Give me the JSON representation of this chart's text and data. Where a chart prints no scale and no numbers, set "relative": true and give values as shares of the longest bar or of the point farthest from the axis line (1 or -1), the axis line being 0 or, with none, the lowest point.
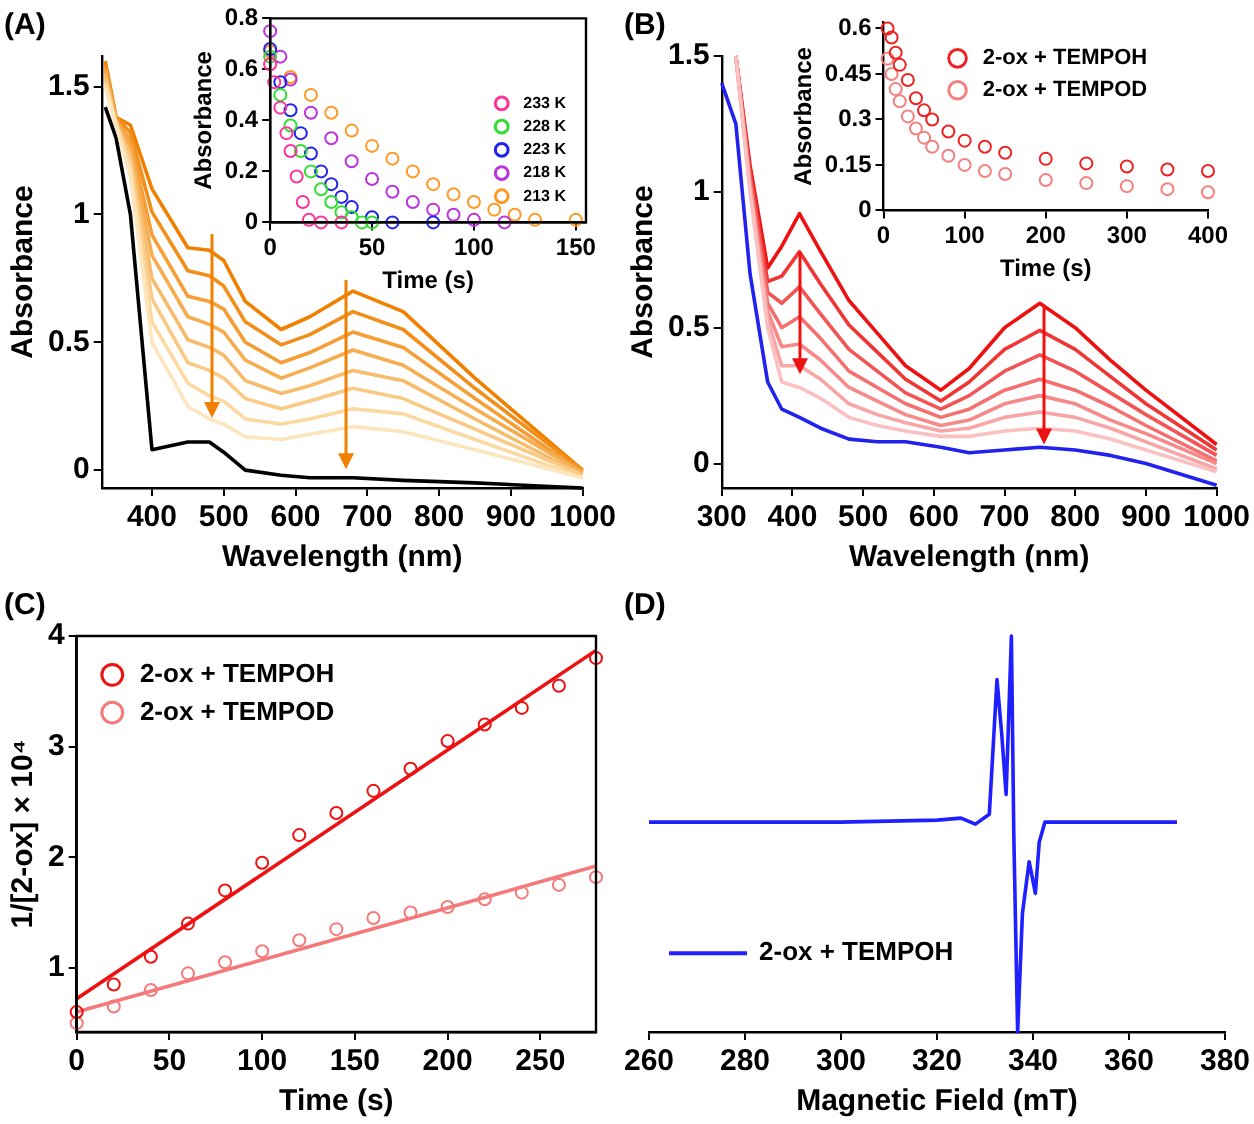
{
  "chart_data": [
    {
      "type": "line",
      "title": "(A)",
      "xlabel": "Wavelength (nm)",
      "ylabel": "Absorbance",
      "xlim": [
        330,
        1000
      ],
      "ylim": [
        -0.07,
        1.62
      ],
      "xticks": [
        400,
        500,
        600,
        700,
        800,
        900,
        1000
      ],
      "yticks": [
        0,
        0.5,
        1,
        1.5
      ],
      "x": [
        335,
        350,
        370,
        400,
        450,
        480,
        500,
        530,
        580,
        620,
        680,
        750,
        850,
        1000
      ],
      "series": [
        {
          "color": "#fde6bd",
          "values": [
            1.5,
            1.35,
            1.15,
            0.5,
            0.25,
            0.2,
            0.18,
            0.13,
            0.12,
            0.14,
            0.17,
            0.15,
            0.08,
            -0.03
          ]
        },
        {
          "color": "#fbd9a1",
          "values": [
            1.51,
            1.35,
            1.18,
            0.58,
            0.34,
            0.29,
            0.27,
            0.2,
            0.18,
            0.2,
            0.24,
            0.22,
            0.12,
            -0.03
          ]
        },
        {
          "color": "#f9ca86",
          "values": [
            1.53,
            1.36,
            1.21,
            0.67,
            0.42,
            0.39,
            0.36,
            0.28,
            0.24,
            0.27,
            0.32,
            0.28,
            0.16,
            -0.02
          ]
        },
        {
          "color": "#f7bc6b",
          "values": [
            1.54,
            1.36,
            1.23,
            0.75,
            0.51,
            0.48,
            0.45,
            0.35,
            0.3,
            0.33,
            0.39,
            0.35,
            0.2,
            -0.02
          ]
        },
        {
          "color": "#f6ad50",
          "values": [
            1.56,
            1.37,
            1.26,
            0.84,
            0.6,
            0.57,
            0.54,
            0.43,
            0.36,
            0.4,
            0.47,
            0.41,
            0.24,
            -0.01
          ]
        },
        {
          "color": "#f49e35",
          "values": [
            1.57,
            1.37,
            1.29,
            0.92,
            0.68,
            0.66,
            0.63,
            0.5,
            0.42,
            0.46,
            0.54,
            0.48,
            0.28,
            -0.01
          ]
        },
        {
          "color": "#f28f1a",
          "values": [
            1.59,
            1.38,
            1.32,
            1.01,
            0.78,
            0.76,
            0.72,
            0.58,
            0.49,
            0.53,
            0.62,
            0.55,
            0.32,
            0
          ]
        },
        {
          "color": "#f08000",
          "values": [
            1.6,
            1.38,
            1.35,
            1.1,
            0.87,
            0.86,
            0.82,
            0.66,
            0.55,
            0.6,
            0.7,
            0.62,
            0.36,
            0
          ]
        },
        {
          "color": "#000000",
          "values": [
            1.42,
            1.3,
            1.0,
            0.08,
            0.11,
            0.11,
            0.07,
            0.0,
            -0.02,
            -0.03,
            -0.03,
            -0.04,
            -0.05,
            -0.07
          ]
        }
      ]
    },
    {
      "type": "scatter",
      "xlabel": "Time (s)",
      "ylabel": "Absorbance",
      "xlim": [
        0,
        155
      ],
      "ylim": [
        0,
        0.8
      ],
      "xticks": [
        0,
        50,
        100,
        150
      ],
      "yticks": [
        0,
        0.2,
        0.4,
        0.6,
        0.8
      ],
      "marker": "circle",
      "legend": "right",
      "series": [
        {
          "name": "233 K",
          "color": "#ff3399",
          "x": [
            0,
            2,
            5,
            8,
            10,
            13,
            16,
            19,
            25,
            35
          ],
          "values": [
            0.62,
            0.55,
            0.45,
            0.35,
            0.28,
            0.18,
            0.08,
            0.01,
            0,
            0
          ]
        },
        {
          "name": "228 K",
          "color": "#33dd33",
          "x": [
            0,
            5,
            10,
            15,
            20,
            25,
            30,
            35,
            40,
            45,
            50
          ],
          "values": [
            0.65,
            0.5,
            0.38,
            0.28,
            0.2,
            0.13,
            0.08,
            0.04,
            0.02,
            0,
            0
          ]
        },
        {
          "name": "223 K",
          "color": "#2222ee",
          "x": [
            0,
            5,
            10,
            15,
            20,
            25,
            30,
            35,
            40,
            50,
            60,
            80
          ],
          "values": [
            0.68,
            0.55,
            0.44,
            0.35,
            0.27,
            0.2,
            0.15,
            0.1,
            0.06,
            0.02,
            0,
            0
          ]
        },
        {
          "name": "218 K",
          "color": "#bb33dd",
          "x": [
            0,
            5,
            10,
            20,
            30,
            40,
            50,
            60,
            70,
            80,
            90,
            100,
            115
          ],
          "values": [
            0.75,
            0.65,
            0.56,
            0.43,
            0.33,
            0.24,
            0.17,
            0.12,
            0.08,
            0.05,
            0.03,
            0.01,
            0
          ]
        },
        {
          "name": "213 K",
          "color": "#ff9922",
          "x": [
            0,
            10,
            20,
            30,
            40,
            50,
            60,
            70,
            80,
            90,
            100,
            110,
            120,
            130,
            150
          ],
          "values": [
            0.67,
            0.57,
            0.5,
            0.43,
            0.36,
            0.3,
            0.25,
            0.2,
            0.15,
            0.11,
            0.08,
            0.05,
            0.03,
            0.01,
            0.01
          ]
        }
      ]
    },
    {
      "type": "line",
      "title": "(B)",
      "xlabel": "Wavelength (nm)",
      "ylabel": "Absorbance",
      "xlim": [
        300,
        1000
      ],
      "ylim": [
        -0.09,
        1.5
      ],
      "xticks": [
        300,
        400,
        500,
        600,
        700,
        800,
        900,
        1000
      ],
      "yticks": [
        0,
        0.5,
        1,
        1.5
      ],
      "x": [
        320,
        340,
        365,
        385,
        410,
        440,
        480,
        520,
        560,
        610,
        650,
        700,
        750,
        800,
        850,
        900,
        1000
      ],
      "series": [
        {
          "color": "#fbc0c0",
          "values": [
            1.5,
            1.0,
            0.5,
            0.3,
            0.28,
            0.24,
            0.17,
            0.14,
            0.12,
            0.1,
            0.1,
            0.12,
            0.13,
            0.12,
            0.09,
            0.05,
            -0.03
          ]
        },
        {
          "color": "#f8a5a5",
          "values": [
            1.5,
            1.01,
            0.53,
            0.36,
            0.36,
            0.31,
            0.22,
            0.18,
            0.15,
            0.12,
            0.13,
            0.17,
            0.19,
            0.17,
            0.13,
            0.08,
            -0.02
          ]
        },
        {
          "color": "#f68a8a",
          "values": [
            1.5,
            1.03,
            0.56,
            0.43,
            0.44,
            0.38,
            0.28,
            0.23,
            0.18,
            0.14,
            0.16,
            0.22,
            0.25,
            0.22,
            0.16,
            0.11,
            0
          ]
        },
        {
          "color": "#f47070",
          "values": [
            1.5,
            1.04,
            0.59,
            0.5,
            0.54,
            0.46,
            0.34,
            0.28,
            0.22,
            0.17,
            0.2,
            0.27,
            0.31,
            0.27,
            0.21,
            0.14,
            0.01
          ]
        },
        {
          "color": "#f25555",
          "values": [
            1.5,
            1.06,
            0.63,
            0.59,
            0.65,
            0.55,
            0.42,
            0.34,
            0.26,
            0.2,
            0.25,
            0.34,
            0.4,
            0.34,
            0.26,
            0.18,
            0.03
          ]
        },
        {
          "color": "#f03535",
          "values": [
            1.5,
            1.08,
            0.67,
            0.69,
            0.78,
            0.66,
            0.51,
            0.41,
            0.31,
            0.23,
            0.3,
            0.42,
            0.49,
            0.42,
            0.32,
            0.22,
            0.05
          ]
        },
        {
          "color": "#ee1111",
          "values": [
            1.5,
            1.1,
            0.72,
            0.8,
            0.92,
            0.78,
            0.6,
            0.48,
            0.36,
            0.27,
            0.35,
            0.5,
            0.59,
            0.5,
            0.38,
            0.27,
            0.07
          ]
        },
        {
          "color": "#2222ee",
          "x": [
            300,
            320,
            340,
            365,
            385,
            410,
            440,
            480,
            520,
            560,
            610,
            650,
            700,
            750,
            800,
            850,
            900,
            1000
          ],
          "values": [
            1.4,
            1.25,
            0.7,
            0.3,
            0.2,
            0.17,
            0.13,
            0.09,
            0.08,
            0.08,
            0.06,
            0.04,
            0.05,
            0.06,
            0.05,
            0.03,
            0.0,
            -0.08
          ]
        }
      ]
    },
    {
      "type": "scatter",
      "xlabel": "Time (s)",
      "ylabel": "Absorbance",
      "xlim": [
        0,
        400
      ],
      "ylim": [
        0,
        0.62
      ],
      "xticks": [
        0,
        100,
        200,
        300,
        400
      ],
      "yticks": [
        0,
        0.15,
        0.3,
        0.45,
        0.6
      ],
      "marker": "circle",
      "legend": "top",
      "series": [
        {
          "name": "2-ox + TEMPOH",
          "color": "#ee2222",
          "x": [
            5,
            10,
            15,
            20,
            30,
            40,
            50,
            60,
            80,
            100,
            125,
            150,
            200,
            250,
            300,
            350,
            400
          ],
          "values": [
            0.6,
            0.57,
            0.52,
            0.48,
            0.43,
            0.37,
            0.33,
            0.3,
            0.26,
            0.23,
            0.21,
            0.19,
            0.17,
            0.155,
            0.145,
            0.135,
            0.13
          ]
        },
        {
          "name": "2-ox + TEMPOD",
          "color": "#f48080",
          "x": [
            5,
            10,
            15,
            20,
            30,
            40,
            50,
            60,
            80,
            100,
            125,
            150,
            200,
            250,
            300,
            350,
            400
          ],
          "values": [
            0.5,
            0.45,
            0.4,
            0.36,
            0.31,
            0.27,
            0.24,
            0.21,
            0.18,
            0.15,
            0.13,
            0.12,
            0.1,
            0.09,
            0.08,
            0.07,
            0.06
          ]
        }
      ]
    },
    {
      "type": "scatter",
      "title": "(C)",
      "xlabel": "Time (s)",
      "ylabel": "1/[2-ox] × 10⁴",
      "xlim": [
        0,
        280
      ],
      "ylim": [
        0.42,
        4
      ],
      "xticks": [
        0,
        50,
        100,
        150,
        200,
        250
      ],
      "yticks": [
        1,
        2,
        3,
        4
      ],
      "marker": "circle",
      "legend": "top left",
      "x": [
        0,
        20,
        40,
        60,
        80,
        100,
        120,
        140,
        160,
        180,
        200,
        220,
        240,
        260,
        280
      ],
      "series": [
        {
          "name": "2-ox + TEMPOH",
          "color": "#ee1111",
          "values": [
            0.6,
            0.85,
            1.1,
            1.4,
            1.7,
            1.95,
            2.2,
            2.4,
            2.6,
            2.8,
            3.05,
            3.2,
            3.35,
            3.55,
            3.8
          ]
        },
        {
          "name": "2-ox + TEMPOD",
          "color": "#f47a7a",
          "values": [
            0.5,
            0.65,
            0.8,
            0.95,
            1.05,
            1.15,
            1.25,
            1.35,
            1.45,
            1.5,
            1.55,
            1.62,
            1.68,
            1.75,
            1.82
          ]
        },
        {
          "type": "line",
          "marker": "none",
          "color": "#ee1111",
          "x": [
            0,
            280
          ],
          "values": [
            0.72,
            3.87
          ]
        },
        {
          "type": "line",
          "marker": "none",
          "color": "#f47a7a",
          "x": [
            0,
            280
          ],
          "values": [
            0.6,
            1.92
          ]
        }
      ]
    },
    {
      "type": "line",
      "title": "(D)",
      "xlabel": "Magnetic Field (mT)",
      "relative": true,
      "tick_labels": "x",
      "xlim": [
        260,
        380
      ],
      "xticks": [
        260,
        280,
        300,
        320,
        340,
        360,
        380
      ],
      "legend": "bottom left",
      "x": [
        260,
        300,
        320,
        325,
        328,
        330.9,
        332.5,
        333.5,
        334.4,
        335.5,
        336,
        336.8,
        337.8,
        339.2,
        340.5,
        341.3,
        342.5,
        370
      ],
      "series": [
        {
          "name": "2-ox + TEMPOH",
          "color": "#1f1fff",
          "values": [
            0.53,
            0.53,
            0.535,
            0.54,
            0.525,
            0.55,
            0.89,
            0.75,
            0.6,
            1,
            0.5,
            0,
            0.3,
            0.43,
            0.35,
            0.48,
            0.53,
            0.53
          ]
        }
      ]
    }
  ]
}
